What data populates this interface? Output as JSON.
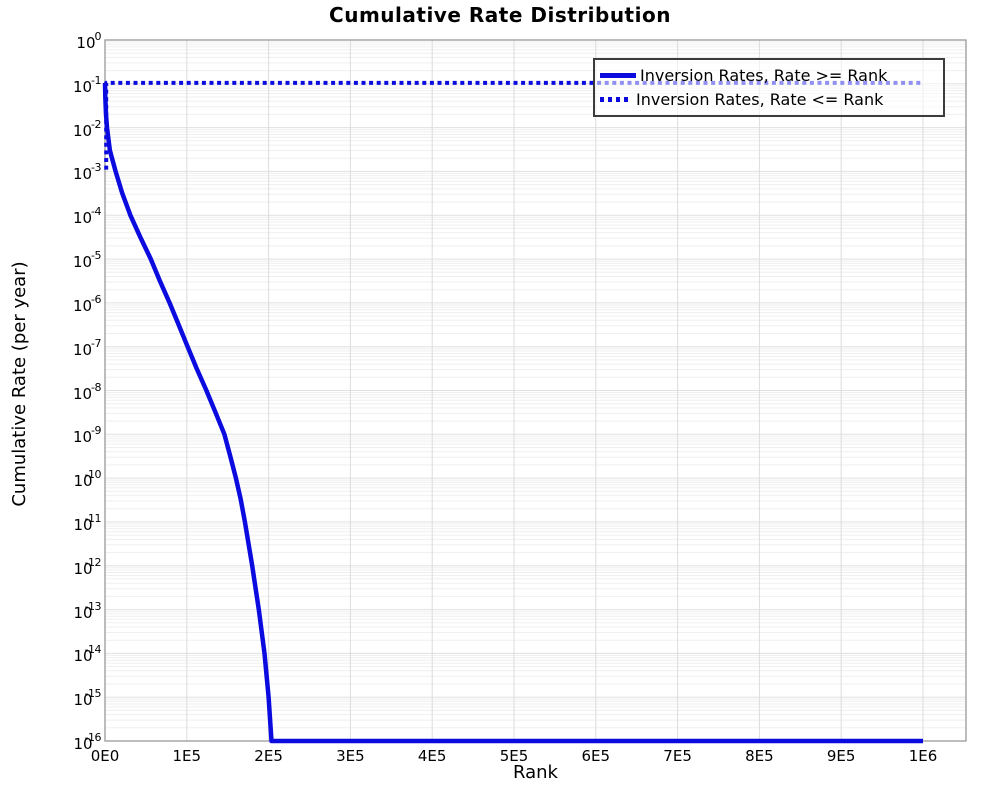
{
  "page": {
    "background": "#ffffff"
  },
  "chart_data": {
    "type": "line",
    "title": "Cumulative Rate Distribution",
    "xlabel": "Rank",
    "ylabel": "Cumulative Rate (per year)",
    "x_axis": {
      "min": 0,
      "axis_max": 1052600,
      "tick_values": [
        0,
        100000,
        200000,
        300000,
        400000,
        500000,
        600000,
        700000,
        800000,
        900000,
        1000000
      ],
      "tick_labels": [
        "0E0",
        "1E5",
        "2E5",
        "3E5",
        "4E5",
        "5E5",
        "6E5",
        "7E5",
        "8E5",
        "9E5",
        "1E6"
      ]
    },
    "y_axis": {
      "scale": "log10",
      "tick_exponents": [
        0,
        -1,
        -2,
        -3,
        -4,
        -5,
        -6,
        -7,
        -8,
        -9,
        -10,
        -11,
        -12,
        -13,
        -14,
        -15,
        -16
      ],
      "ylim": [
        1e-16,
        1
      ]
    },
    "grid": {
      "show_minor_log": true,
      "major_color": "#e0e0e0",
      "minor_color": "#efefef",
      "vertical_color": "#dcdcdc"
    },
    "frame_color": "#999999",
    "series": [
      {
        "name": "Inversion Rates, Rate >= Rank",
        "style": "solid",
        "color": "#0b0be0",
        "width": 4.5,
        "points": [
          [
            0,
            0.105
          ],
          [
            400,
            0.05
          ],
          [
            1200,
            0.02
          ],
          [
            2500,
            0.01
          ],
          [
            6000,
            0.003
          ],
          [
            13000,
            0.001
          ],
          [
            21000,
            0.00032
          ],
          [
            31000,
            0.0001
          ],
          [
            43000,
            3.2e-05
          ],
          [
            56000,
            1e-05
          ],
          [
            67000,
            3.2e-06
          ],
          [
            79000,
            1e-06
          ],
          [
            90000,
            3.2e-07
          ],
          [
            101000,
            1e-07
          ],
          [
            112000,
            3.2e-08
          ],
          [
            124000,
            1e-08
          ],
          [
            135000,
            3.2e-09
          ],
          [
            146000,
            1e-09
          ],
          [
            153000,
            3.2e-10
          ],
          [
            160000,
            1e-10
          ],
          [
            166000,
            3.2e-11
          ],
          [
            171000,
            1e-11
          ],
          [
            180000,
            1e-12
          ],
          [
            188000,
            1e-13
          ],
          [
            195000,
            1e-14
          ],
          [
            200000,
            1e-15
          ],
          [
            203500,
            1e-16
          ],
          [
            1000000,
            1e-16
          ]
        ]
      },
      {
        "name": "Inversion Rates, Rate <= Rank",
        "style": "dotted",
        "color": "#0b0be0",
        "width": 4,
        "points": [
          [
            1500,
            0.0011
          ],
          [
            1500,
            0.105
          ],
          [
            1000000,
            0.105
          ]
        ]
      }
    ],
    "legend": {
      "position": "top-right",
      "entries": [
        "Inversion Rates, Rate >= Rank",
        "Inversion Rates, Rate <= Rank"
      ]
    }
  }
}
